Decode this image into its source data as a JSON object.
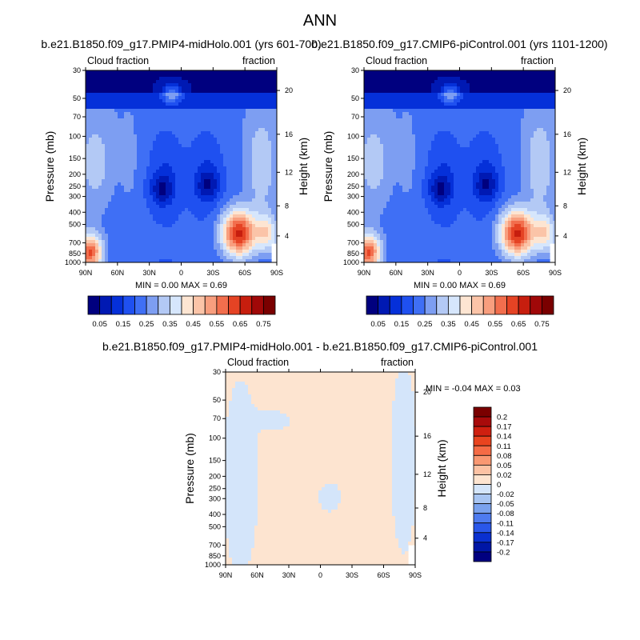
{
  "figure": {
    "title": "ANN"
  },
  "chart_data": [
    {
      "type": "heatmap",
      "title": "b.e21.B1850.f09_g17.PMIP4-midHolo.001 (yrs 601-700)",
      "left_label": "Cloud fraction",
      "right_label": "fraction",
      "xlabel": "",
      "ylabel": "Pressure (mb)",
      "y2label": "Height (km)",
      "x_tick_labels": [
        "90N",
        "60N",
        "30N",
        "0",
        "30S",
        "60S",
        "90S"
      ],
      "x_values": [
        90,
        60,
        30,
        0,
        -30,
        -60,
        -90
      ],
      "y_tick_labels": [
        "30",
        "50",
        "70",
        "100",
        "150",
        "200",
        "250",
        "300",
        "400",
        "500",
        "700",
        "850",
        "1000"
      ],
      "y_values": [
        30,
        50,
        70,
        100,
        150,
        200,
        250,
        300,
        400,
        500,
        700,
        850,
        1000
      ],
      "y_scale": "log",
      "ylim": [
        1000,
        30
      ],
      "height_tick_labels": [
        "20",
        "16",
        "12",
        "8",
        "4"
      ],
      "height_values": [
        20,
        16,
        12,
        8,
        4
      ],
      "stats_text": "MIN =   0.00   MAX =   0.69",
      "min": 0.0,
      "max": 0.69,
      "colorbar_labels": [
        "0.05",
        "0.15",
        "0.25",
        "0.35",
        "0.45",
        "0.55",
        "0.65",
        "0.75"
      ],
      "colorbar_values": [
        0.05,
        0.1,
        0.15,
        0.2,
        0.25,
        0.3,
        0.35,
        0.4,
        0.45,
        0.5,
        0.55,
        0.6,
        0.65,
        0.7,
        0.75
      ]
    },
    {
      "type": "heatmap",
      "title": "b.e21.B1850.f09_g17.CMIP6-piControl.001 (yrs 1101-1200)",
      "left_label": "Cloud fraction",
      "right_label": "fraction",
      "xlabel": "",
      "ylabel": "Pressure (mb)",
      "y2label": "Height (km)",
      "x_tick_labels": [
        "90N",
        "60N",
        "30N",
        "0",
        "30S",
        "60S",
        "90S"
      ],
      "x_values": [
        90,
        60,
        30,
        0,
        -30,
        -60,
        -90
      ],
      "y_tick_labels": [
        "30",
        "50",
        "70",
        "100",
        "150",
        "200",
        "250",
        "300",
        "400",
        "500",
        "700",
        "850",
        "1000"
      ],
      "y_values": [
        30,
        50,
        70,
        100,
        150,
        200,
        250,
        300,
        400,
        500,
        700,
        850,
        1000
      ],
      "y_scale": "log",
      "ylim": [
        1000,
        30
      ],
      "height_tick_labels": [
        "20",
        "16",
        "12",
        "8",
        "4"
      ],
      "height_values": [
        20,
        16,
        12,
        8,
        4
      ],
      "stats_text": "MIN =   0.00   MAX =   0.69",
      "min": 0.0,
      "max": 0.69,
      "colorbar_labels": [
        "0.05",
        "0.15",
        "0.25",
        "0.35",
        "0.45",
        "0.55",
        "0.65",
        "0.75"
      ],
      "colorbar_values": [
        0.05,
        0.1,
        0.15,
        0.2,
        0.25,
        0.3,
        0.35,
        0.4,
        0.45,
        0.5,
        0.55,
        0.6,
        0.65,
        0.7,
        0.75
      ]
    },
    {
      "type": "heatmap",
      "title": "b.e21.B1850.f09_g17.PMIP4-midHolo.001 - b.e21.B1850.f09_g17.CMIP6-piControl.001",
      "left_label": "Cloud fraction",
      "right_label": "fraction",
      "xlabel": "",
      "ylabel": "Pressure (mb)",
      "y2label": "Height (km)",
      "x_tick_labels": [
        "90N",
        "60N",
        "30N",
        "0",
        "30S",
        "60S",
        "90S"
      ],
      "x_values": [
        90,
        60,
        30,
        0,
        -30,
        -60,
        -90
      ],
      "y_tick_labels": [
        "30",
        "50",
        "70",
        "100",
        "150",
        "200",
        "250",
        "300",
        "400",
        "500",
        "700",
        "850",
        "1000"
      ],
      "y_values": [
        30,
        50,
        70,
        100,
        150,
        200,
        250,
        300,
        400,
        500,
        700,
        850,
        1000
      ],
      "y_scale": "log",
      "ylim": [
        1000,
        30
      ],
      "height_tick_labels": [
        "20",
        "16",
        "12",
        "8",
        "4"
      ],
      "height_values": [
        20,
        16,
        12,
        8,
        4
      ],
      "stats_text": "MIN =  -0.04   MAX =   0.03",
      "min": -0.04,
      "max": 0.03,
      "colorbar_labels": [
        "0.2",
        "0.17",
        "0.14",
        "0.11",
        "0.08",
        "0.05",
        "0.02",
        "0",
        "-0.02",
        "-0.05",
        "-0.08",
        "-0.11",
        "-0.14",
        "-0.17",
        "-0.2"
      ],
      "colorbar_values": [
        0.2,
        0.17,
        0.14,
        0.11,
        0.08,
        0.05,
        0.02,
        0,
        -0.02,
        -0.05,
        -0.08,
        -0.11,
        -0.14,
        -0.17,
        -0.2
      ]
    }
  ],
  "colors": {
    "abs_scale": [
      "#00007f",
      "#0019b3",
      "#0530d9",
      "#1f50f0",
      "#3f6ff5",
      "#7d9ef2",
      "#b3c9f5",
      "#d6e6fc",
      "#fde5d2",
      "#fbc4a8",
      "#f89e7e",
      "#f26e4d",
      "#e54324",
      "#c71e0e",
      "#a00808",
      "#7a0000"
    ],
    "diff_scale": [
      "#7a0000",
      "#a80b0b",
      "#cf2010",
      "#e9441f",
      "#f56b45",
      "#f99872",
      "#fcc2a4",
      "#fde4d0",
      "#d4e5fa",
      "#a8c5f2",
      "#7aa2ee",
      "#4e7bf0",
      "#2a57ea",
      "#0a30d0",
      "#0016a6",
      "#000080"
    ]
  }
}
